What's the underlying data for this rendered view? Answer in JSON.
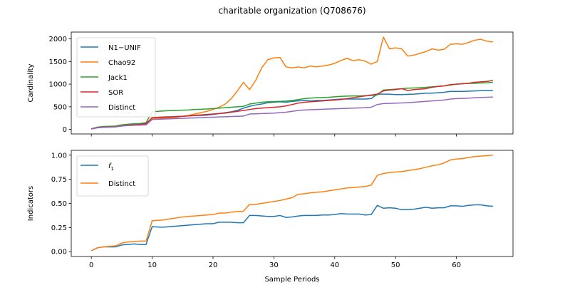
{
  "chart_data": [
    {
      "type": "line",
      "title": "charitable organization (Q708676)",
      "xlabel": "",
      "ylabel": "Cardinality",
      "xlim": [
        -3.3,
        69.3
      ],
      "ylim": [
        -100,
        2150
      ],
      "xticks": [
        0,
        10,
        20,
        30,
        40,
        50,
        60
      ],
      "xticks_labeled": false,
      "yticks": [
        0,
        500,
        1000,
        1500,
        2000
      ],
      "legend_position": "upper-left",
      "x": [
        0,
        1,
        2,
        3,
        4,
        5,
        6,
        7,
        8,
        9,
        10,
        11,
        12,
        13,
        14,
        15,
        16,
        17,
        18,
        19,
        20,
        21,
        22,
        23,
        24,
        25,
        26,
        27,
        28,
        29,
        30,
        31,
        32,
        33,
        34,
        35,
        36,
        37,
        38,
        39,
        40,
        41,
        42,
        43,
        44,
        45,
        46,
        47,
        48,
        49,
        50,
        51,
        52,
        53,
        54,
        55,
        56,
        57,
        58,
        59,
        60,
        61,
        62,
        63,
        64,
        65,
        66
      ],
      "series": [
        {
          "name": "N1−UNIF",
          "color": "#1f77b4",
          "values": [
            15,
            45,
            55,
            60,
            65,
            80,
            95,
            100,
            100,
            110,
            260,
            270,
            275,
            280,
            285,
            290,
            300,
            305,
            310,
            315,
            330,
            350,
            370,
            390,
            420,
            470,
            510,
            540,
            560,
            590,
            600,
            610,
            600,
            620,
            630,
            640,
            630,
            640,
            640,
            650,
            660,
            670,
            670,
            670,
            670,
            670,
            680,
            780,
            780,
            780,
            770,
            770,
            775,
            780,
            790,
            800,
            800,
            810,
            820,
            840,
            840,
            840,
            845,
            850,
            855,
            855,
            855
          ]
        },
        {
          "name": "Chao92",
          "color": "#ff7f0e",
          "values": [
            10,
            40,
            50,
            55,
            60,
            80,
            95,
            100,
            110,
            130,
            240,
            250,
            250,
            260,
            270,
            290,
            310,
            340,
            370,
            400,
            440,
            490,
            560,
            680,
            850,
            1040,
            880,
            1080,
            1360,
            1540,
            1580,
            1590,
            1380,
            1360,
            1380,
            1360,
            1400,
            1380,
            1400,
            1420,
            1460,
            1520,
            1570,
            1520,
            1540,
            1510,
            1440,
            1500,
            2040,
            1780,
            1800,
            1780,
            1620,
            1640,
            1680,
            1720,
            1780,
            1750,
            1770,
            1880,
            1890,
            1880,
            1920,
            1970,
            1990,
            1950,
            1930
          ]
        },
        {
          "name": "Jack1",
          "color": "#2ca02c",
          "values": [
            15,
            50,
            65,
            70,
            75,
            100,
            115,
            125,
            130,
            150,
            390,
            400,
            410,
            415,
            420,
            425,
            430,
            440,
            445,
            450,
            460,
            470,
            480,
            490,
            500,
            510,
            560,
            580,
            600,
            610,
            615,
            620,
            625,
            640,
            660,
            680,
            690,
            700,
            705,
            710,
            720,
            730,
            735,
            740,
            740,
            745,
            750,
            760,
            870,
            880,
            890,
            900,
            910,
            915,
            920,
            930,
            940,
            950,
            960,
            980,
            1000,
            1010,
            1015,
            1020,
            1025,
            1030,
            1040
          ]
        },
        {
          "name": "SOR",
          "color": "#d62728",
          "values": [
            10,
            40,
            50,
            55,
            60,
            80,
            95,
            100,
            110,
            130,
            260,
            265,
            270,
            275,
            280,
            290,
            300,
            310,
            320,
            330,
            340,
            350,
            360,
            380,
            400,
            420,
            440,
            460,
            470,
            480,
            490,
            500,
            520,
            550,
            580,
            600,
            610,
            620,
            630,
            640,
            650,
            660,
            680,
            700,
            720,
            740,
            760,
            780,
            850,
            870,
            880,
            900,
            860,
            880,
            890,
            900,
            930,
            950,
            960,
            990,
            1000,
            1010,
            1020,
            1040,
            1050,
            1060,
            1080
          ]
        },
        {
          "name": "Distinct",
          "color": "#9467bd",
          "values": [
            10,
            35,
            45,
            50,
            55,
            75,
            85,
            90,
            95,
            100,
            220,
            225,
            230,
            235,
            240,
            245,
            250,
            255,
            260,
            265,
            270,
            275,
            280,
            285,
            290,
            295,
            340,
            345,
            350,
            355,
            360,
            370,
            380,
            400,
            420,
            430,
            435,
            440,
            445,
            450,
            455,
            460,
            465,
            470,
            475,
            480,
            490,
            550,
            570,
            575,
            580,
            585,
            590,
            600,
            610,
            620,
            630,
            640,
            650,
            670,
            680,
            685,
            690,
            700,
            705,
            710,
            715
          ]
        }
      ]
    },
    {
      "type": "line",
      "title": "",
      "xlabel": "Sample Periods",
      "ylabel": "Indicators",
      "xlim": [
        -3.3,
        69.3
      ],
      "ylim": [
        -0.05,
        1.05
      ],
      "xticks": [
        0,
        10,
        20,
        30,
        40,
        50,
        60
      ],
      "xticks_labeled": true,
      "yticks": [
        0.0,
        0.25,
        0.5,
        0.75,
        1.0
      ],
      "ytick_labels": [
        "0.00",
        "0.25",
        "0.50",
        "0.75",
        "1.00"
      ],
      "legend_position": "upper-left",
      "x": [
        0,
        1,
        2,
        3,
        4,
        5,
        6,
        7,
        8,
        9,
        10,
        11,
        12,
        13,
        14,
        15,
        16,
        17,
        18,
        19,
        20,
        21,
        22,
        23,
        24,
        25,
        26,
        27,
        28,
        29,
        30,
        31,
        32,
        33,
        34,
        35,
        36,
        37,
        38,
        39,
        40,
        41,
        42,
        43,
        44,
        45,
        46,
        47,
        48,
        49,
        50,
        51,
        52,
        53,
        54,
        55,
        56,
        57,
        58,
        59,
        60,
        61,
        62,
        63,
        64,
        65,
        66
      ],
      "series": [
        {
          "name": "f",
          "name_sub": "1",
          "color": "#1f77b4",
          "values": [
            0.01,
            0.04,
            0.05,
            0.05,
            0.05,
            0.07,
            0.075,
            0.08,
            0.075,
            0.075,
            0.26,
            0.255,
            0.255,
            0.26,
            0.265,
            0.27,
            0.275,
            0.28,
            0.285,
            0.29,
            0.29,
            0.305,
            0.305,
            0.305,
            0.3,
            0.3,
            0.375,
            0.375,
            0.37,
            0.365,
            0.365,
            0.375,
            0.355,
            0.36,
            0.37,
            0.375,
            0.375,
            0.375,
            0.38,
            0.38,
            0.385,
            0.395,
            0.39,
            0.39,
            0.39,
            0.38,
            0.385,
            0.48,
            0.45,
            0.455,
            0.45,
            0.435,
            0.435,
            0.44,
            0.45,
            0.46,
            0.45,
            0.455,
            0.455,
            0.475,
            0.475,
            0.47,
            0.48,
            0.485,
            0.485,
            0.475,
            0.47
          ]
        },
        {
          "name": "Distinct",
          "color": "#ff7f0e",
          "values": [
            0.01,
            0.04,
            0.05,
            0.055,
            0.06,
            0.09,
            0.1,
            0.105,
            0.11,
            0.11,
            0.32,
            0.325,
            0.33,
            0.34,
            0.35,
            0.36,
            0.365,
            0.37,
            0.375,
            0.38,
            0.385,
            0.4,
            0.4,
            0.41,
            0.415,
            0.42,
            0.49,
            0.49,
            0.5,
            0.51,
            0.52,
            0.53,
            0.545,
            0.56,
            0.595,
            0.6,
            0.61,
            0.615,
            0.62,
            0.63,
            0.64,
            0.65,
            0.66,
            0.665,
            0.67,
            0.675,
            0.69,
            0.79,
            0.81,
            0.82,
            0.825,
            0.83,
            0.84,
            0.85,
            0.86,
            0.875,
            0.89,
            0.9,
            0.92,
            0.95,
            0.96,
            0.965,
            0.975,
            0.985,
            0.99,
            0.995,
            1.0
          ]
        }
      ]
    }
  ]
}
